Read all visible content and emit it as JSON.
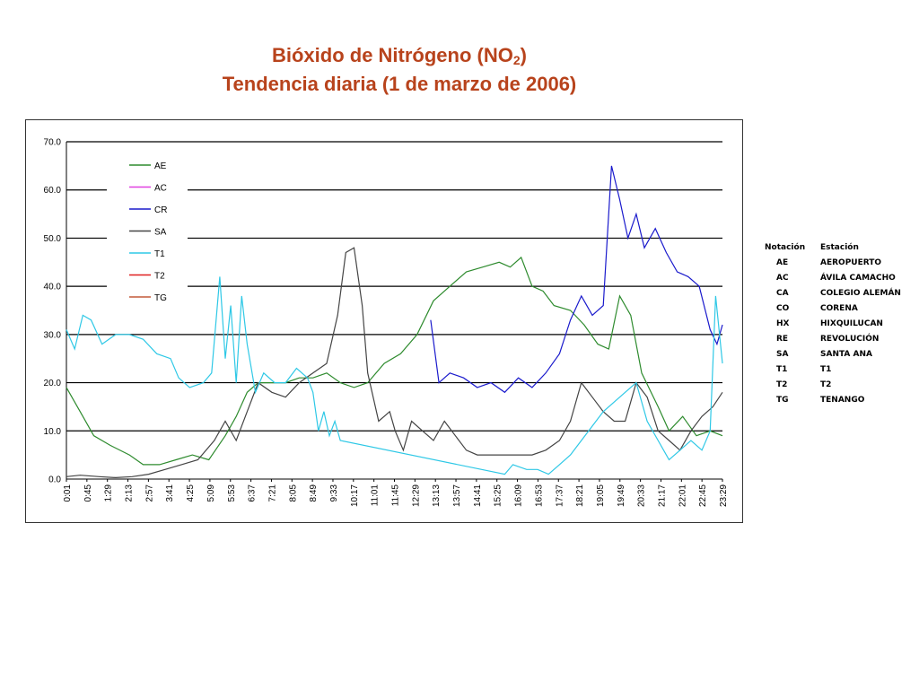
{
  "title": {
    "line1_prefix": "Bióxido de Nitrógeno (NO",
    "line1_sub": "2",
    "line1_suffix": ")",
    "line2": "Tendencia diaria (1 de marzo de 2006)"
  },
  "chart_data": {
    "type": "line",
    "ylim": [
      0,
      70
    ],
    "yticks": [
      "0.0",
      "10.0",
      "20.0",
      "30.0",
      "40.0",
      "50.0",
      "60.0",
      "70.0"
    ],
    "grid": true,
    "legend_position": "top-left",
    "x_tick_labels": [
      "0:01",
      "0:45",
      "1:29",
      "2:13",
      "2:57",
      "3:41",
      "4:25",
      "5:09",
      "5:53",
      "6:37",
      "7:21",
      "8:05",
      "8:49",
      "9:33",
      "10:17",
      "11:01",
      "11:45",
      "12:29",
      "13:13",
      "13:57",
      "14:41",
      "15:25",
      "16:09",
      "16:53",
      "17:37",
      "18:21",
      "19:05",
      "19:49",
      "20:33",
      "21:17",
      "22:01",
      "22:45",
      "23:29"
    ],
    "series": [
      {
        "name": "AE",
        "color": "#2e8b2e",
        "points": [
          [
            0,
            19
          ],
          [
            0.5,
            14
          ],
          [
            1,
            9
          ],
          [
            1.6,
            7
          ],
          [
            2.3,
            5
          ],
          [
            2.8,
            3
          ],
          [
            3.4,
            3
          ],
          [
            4,
            4
          ],
          [
            4.6,
            5
          ],
          [
            5.2,
            4
          ],
          [
            5.8,
            9
          ],
          [
            6.2,
            13
          ],
          [
            6.6,
            18
          ],
          [
            7.0,
            20
          ],
          [
            7.5,
            20
          ],
          [
            8.0,
            20
          ],
          [
            8.5,
            21
          ],
          [
            9.0,
            21
          ],
          [
            9.5,
            22
          ],
          [
            10.0,
            20
          ],
          [
            10.5,
            19
          ],
          [
            11.0,
            20
          ],
          [
            11.6,
            24
          ],
          [
            12.2,
            26
          ],
          [
            12.8,
            30
          ],
          [
            13.4,
            37
          ],
          [
            14.0,
            40
          ],
          [
            14.6,
            43
          ],
          [
            15.2,
            44
          ],
          [
            15.8,
            45
          ],
          [
            16.2,
            44
          ],
          [
            16.6,
            46
          ],
          [
            17.0,
            40
          ],
          [
            17.4,
            39
          ],
          [
            17.8,
            36
          ],
          [
            18.4,
            35
          ],
          [
            18.9,
            32
          ],
          [
            19.4,
            28
          ],
          [
            19.8,
            27
          ],
          [
            20.2,
            38
          ],
          [
            20.6,
            34
          ],
          [
            21.0,
            22
          ],
          [
            21.6,
            15
          ],
          [
            22.0,
            10
          ],
          [
            22.5,
            13
          ],
          [
            23.0,
            9
          ],
          [
            23.5,
            10
          ],
          [
            23.95,
            9
          ]
        ]
      },
      {
        "name": "AC",
        "color": "#e040e0",
        "points": []
      },
      {
        "name": "CR",
        "color": "#1a1acc",
        "points": [
          [
            13.3,
            33
          ],
          [
            13.6,
            20
          ],
          [
            14.0,
            22
          ],
          [
            14.5,
            21
          ],
          [
            15.0,
            19
          ],
          [
            15.5,
            20
          ],
          [
            16.0,
            18
          ],
          [
            16.5,
            21
          ],
          [
            17.0,
            19
          ],
          [
            17.5,
            22
          ],
          [
            18.0,
            26
          ],
          [
            18.4,
            33
          ],
          [
            18.8,
            38
          ],
          [
            19.2,
            34
          ],
          [
            19.6,
            36
          ],
          [
            19.9,
            65
          ],
          [
            20.2,
            58
          ],
          [
            20.5,
            50
          ],
          [
            20.8,
            55
          ],
          [
            21.1,
            48
          ],
          [
            21.5,
            52
          ],
          [
            21.9,
            47
          ],
          [
            22.3,
            43
          ],
          [
            22.7,
            42
          ],
          [
            23.1,
            40
          ],
          [
            23.5,
            31
          ],
          [
            23.75,
            28
          ],
          [
            23.95,
            32
          ]
        ]
      },
      {
        "name": "SA",
        "color": "#444444",
        "points": [
          [
            0,
            0.5
          ],
          [
            0.5,
            0.8
          ],
          [
            1.2,
            0.5
          ],
          [
            1.8,
            0.3
          ],
          [
            2.4,
            0.5
          ],
          [
            3.0,
            1
          ],
          [
            3.6,
            2
          ],
          [
            4.2,
            3
          ],
          [
            4.8,
            4
          ],
          [
            5.4,
            8
          ],
          [
            5.8,
            12
          ],
          [
            6.2,
            8
          ],
          [
            6.6,
            14
          ],
          [
            7.0,
            20
          ],
          [
            7.5,
            18
          ],
          [
            8.0,
            17
          ],
          [
            8.5,
            20
          ],
          [
            9.0,
            22
          ],
          [
            9.5,
            24
          ],
          [
            9.9,
            34
          ],
          [
            10.2,
            47
          ],
          [
            10.5,
            48
          ],
          [
            10.8,
            36
          ],
          [
            11.0,
            22
          ],
          [
            11.4,
            12
          ],
          [
            11.8,
            14
          ],
          [
            12.0,
            10
          ],
          [
            12.3,
            6
          ],
          [
            12.6,
            12
          ],
          [
            13.0,
            10
          ],
          [
            13.4,
            8
          ],
          [
            13.8,
            12
          ],
          [
            14.2,
            9
          ],
          [
            14.6,
            6
          ],
          [
            15.0,
            5
          ],
          [
            15.5,
            5
          ],
          [
            16.0,
            5
          ],
          [
            16.5,
            5
          ],
          [
            17.0,
            5
          ],
          [
            17.5,
            6
          ],
          [
            18.0,
            8
          ],
          [
            18.4,
            12
          ],
          [
            18.8,
            20
          ],
          [
            19.2,
            17
          ],
          [
            19.6,
            14
          ],
          [
            20.0,
            12
          ],
          [
            20.4,
            12
          ],
          [
            20.8,
            20
          ],
          [
            21.2,
            17
          ],
          [
            21.6,
            10
          ],
          [
            22.0,
            8
          ],
          [
            22.4,
            6
          ],
          [
            22.8,
            10
          ],
          [
            23.2,
            13
          ],
          [
            23.6,
            15
          ],
          [
            23.95,
            18
          ]
        ]
      },
      {
        "name": "T1",
        "color": "#2ec8e6",
        "points": [
          [
            0,
            31
          ],
          [
            0.3,
            27
          ],
          [
            0.6,
            34
          ],
          [
            0.9,
            33
          ],
          [
            1.3,
            28
          ],
          [
            1.8,
            30
          ],
          [
            2.3,
            30
          ],
          [
            2.8,
            29
          ],
          [
            3.3,
            26
          ],
          [
            3.8,
            25
          ],
          [
            4.1,
            21
          ],
          [
            4.5,
            19
          ],
          [
            5.0,
            20
          ],
          [
            5.3,
            22
          ],
          [
            5.6,
            42
          ],
          [
            5.8,
            25
          ],
          [
            6.0,
            36
          ],
          [
            6.2,
            20
          ],
          [
            6.4,
            38
          ],
          [
            6.6,
            28
          ],
          [
            6.9,
            18
          ],
          [
            7.2,
            22
          ],
          [
            7.6,
            20
          ],
          [
            8.0,
            20
          ],
          [
            8.4,
            23
          ],
          [
            8.8,
            21
          ],
          [
            9.0,
            18
          ],
          [
            9.2,
            10
          ],
          [
            9.4,
            14
          ],
          [
            9.6,
            9
          ],
          [
            9.8,
            12
          ],
          [
            10.0,
            8
          ],
          [
            16.0,
            1
          ],
          [
            16.3,
            3
          ],
          [
            16.8,
            2
          ],
          [
            17.2,
            2
          ],
          [
            17.6,
            1
          ],
          [
            18.0,
            3
          ],
          [
            18.4,
            5
          ],
          [
            18.8,
            8
          ],
          [
            19.2,
            11
          ],
          [
            19.6,
            14
          ],
          [
            20.0,
            16
          ],
          [
            20.4,
            18
          ],
          [
            20.8,
            20
          ],
          [
            21.2,
            12
          ],
          [
            21.6,
            8
          ],
          [
            22.0,
            4
          ],
          [
            22.4,
            6
          ],
          [
            22.8,
            8
          ],
          [
            23.2,
            6
          ],
          [
            23.5,
            10
          ],
          [
            23.7,
            38
          ],
          [
            23.95,
            24
          ]
        ]
      },
      {
        "name": "T2",
        "color": "#e02020",
        "points": []
      },
      {
        "name": "TG",
        "color": "#c45a3a",
        "points": []
      }
    ]
  },
  "station_table": {
    "headers": [
      "Notación",
      "Estación"
    ],
    "rows": [
      [
        "AE",
        "AEROPUERTO"
      ],
      [
        "AC",
        "ÁVILA CAMACHO"
      ],
      [
        "CA",
        "COLEGIO ALEMÁN"
      ],
      [
        "CO",
        "CORENA"
      ],
      [
        "HX",
        "HIXQUILUCAN"
      ],
      [
        "RE",
        "REVOLUCIÓN"
      ],
      [
        "SA",
        "SANTA ANA"
      ],
      [
        "T1",
        "T1"
      ],
      [
        "T2",
        "T2"
      ],
      [
        "TG",
        "TENANGO"
      ]
    ]
  }
}
